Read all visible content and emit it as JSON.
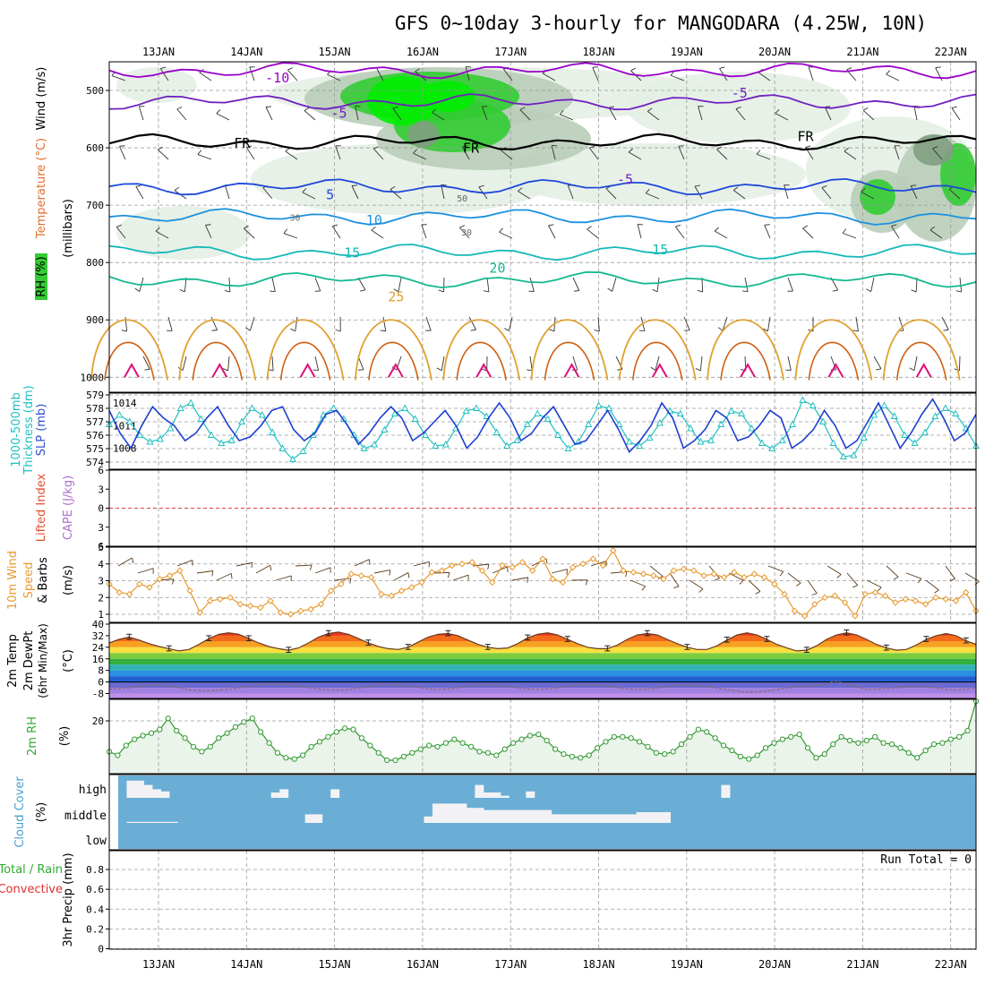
{
  "title": "GFS 0~10day 3-hourly for MANGODARA (4.25W, 10N)",
  "dates": [
    "13JAN",
    "14JAN",
    "15JAN",
    "16JAN",
    "17JAN",
    "18JAN",
    "19JAN",
    "20JAN",
    "21JAN",
    "22JAN"
  ],
  "colors": {
    "grid": "#9a9a9a",
    "rh_light": "#e4efe4",
    "rh_mid": "#b9cdb9",
    "rh_dark": "#7f9f7f",
    "rh_green": "#33cc33",
    "rh_bright": "#00ee00",
    "temp_m10": "#9900cc",
    "temp_m5": "#7020c0",
    "temp_fr": "#000000",
    "temp_5": "#1e48d8",
    "temp_10": "#1a90e0",
    "temp_15": "#16b8b8",
    "temp_20": "#14b890",
    "temp_25": "#e0a030",
    "temp_30": "#d06010",
    "temp_35": "#e0107a",
    "slp": "#1f3fd0",
    "thickness": "#20c0c0",
    "wind10m": "#e79a30",
    "barb": "#5a3a1a",
    "rh2m": "#339933",
    "rh2m_fill": "#eaf4ea",
    "cloud_bg": "#6aaed6",
    "cloud_fg": "#f2f2f5",
    "cape_zero": "#e04040"
  },
  "chart_data": [
    {
      "type": "heatmap",
      "panel": "upper-air",
      "ylabel": "(millibars)",
      "legend_labels": [
        "RH (%)",
        "Temperature (°C)",
        "Wind (m/s)"
      ],
      "y_ticks": [
        500,
        600,
        700,
        800,
        900,
        1000
      ],
      "ylim": [
        450,
        1005
      ],
      "contour_labels": [
        {
          "text": "-10",
          "day": 1.35,
          "p": 478
        },
        {
          "text": "-5",
          "day": 6.6,
          "p": 505
        },
        {
          "text": "-5",
          "day": 2.05,
          "p": 540
        },
        {
          "text": "FR",
          "day": 0.95,
          "p": 592
        },
        {
          "text": "FR",
          "day": 3.55,
          "p": 601
        },
        {
          "text": "FR",
          "day": 7.35,
          "p": 580
        },
        {
          "text": "5",
          "day": 1.95,
          "p": 682
        },
        {
          "text": "-5",
          "day": 5.3,
          "p": 655
        },
        {
          "text": "10",
          "day": 2.45,
          "p": 726
        },
        {
          "text": "15",
          "day": 2.2,
          "p": 783
        },
        {
          "text": "15",
          "day": 5.7,
          "p": 778
        },
        {
          "text": "20",
          "day": 3.85,
          "p": 810
        },
        {
          "text": "25",
          "day": 2.7,
          "p": 860
        },
        {
          "text": "30",
          "day": 1.55,
          "p": 719
        },
        {
          "text": "30",
          "day": 3.5,
          "p": 745
        },
        {
          "text": "50",
          "day": 3.45,
          "p": 686
        }
      ],
      "isotherms": [
        {
          "label": "-10",
          "p": 465
        },
        {
          "label": "-5",
          "p": 520
        },
        {
          "label": "FR",
          "p": 590
        },
        {
          "label": "5",
          "p": 668
        },
        {
          "label": "10",
          "p": 720
        },
        {
          "label": "15",
          "p": 782
        },
        {
          "label": "20",
          "p": 830
        }
      ]
    },
    {
      "type": "line",
      "panel": "slp-thickness",
      "legend_labels": [
        "1000-500mb",
        "Thickness (dm)",
        "SLP (mb)"
      ],
      "y_left_ticks": [
        574,
        575,
        576,
        577,
        578,
        579
      ],
      "y_right_ticks": [
        1008,
        1011,
        1014
      ],
      "series": [
        {
          "name": "SLP (mb)",
          "axis": "right",
          "ylim": [
            1005.5,
            1016
          ],
          "values": [
            1013,
            1010,
            1008,
            1011,
            1013.5,
            1012,
            1011,
            1009,
            1010,
            1012,
            1013.5,
            1011,
            1009,
            1009.5,
            1011,
            1013,
            1013.5,
            1010.5,
            1009,
            1010,
            1012.5,
            1013,
            1011,
            1008.5,
            1010,
            1012,
            1013.5,
            1012,
            1009,
            1010,
            1011.5,
            1013,
            1011,
            1008,
            1009.5,
            1012,
            1014,
            1012,
            1009,
            1010,
            1012,
            1013.5,
            1011,
            1008.5,
            1009,
            1011,
            1013,
            1010.5,
            1007.5,
            1009,
            1011,
            1014,
            1012,
            1008,
            1009,
            1010.5,
            1013,
            1012,
            1009,
            1009.5,
            1011,
            1013,
            1012,
            1008,
            1009,
            1010.5,
            1013,
            1011,
            1008,
            1009,
            1011.5,
            1014,
            1011,
            1008,
            1010,
            1012.5,
            1014.5,
            1012,
            1009,
            1010,
            1012.5
          ]
        },
        {
          "name": "Thickness (dm)",
          "axis": "left",
          "ylim": [
            573.5,
            579
          ],
          "values": [
            576.8,
            577.5,
            577,
            576,
            575.5,
            575.7,
            576.5,
            578,
            578.4,
            577.2,
            576,
            575.4,
            575.6,
            577,
            578,
            577.5,
            576.2,
            575,
            574.2,
            574.8,
            576,
            577.5,
            578,
            577.2,
            576,
            575,
            575.3,
            576.4,
            577.6,
            578,
            577.2,
            576,
            575.2,
            575.3,
            576.5,
            577.8,
            578,
            577.4,
            576.2,
            575.2,
            575.6,
            576.8,
            577.6,
            577.2,
            576,
            575,
            575.5,
            576.8,
            578.2,
            578,
            576.8,
            575.5,
            575.2,
            575.8,
            576.9,
            577.8,
            577.6,
            576.5,
            575.5,
            575.6,
            576.8,
            577.8,
            577.6,
            576.5,
            575.4,
            575,
            575.6,
            576.8,
            578.6,
            578.2,
            577,
            575.4,
            574.4,
            574.5,
            575.8,
            577.5,
            578.2,
            577.4,
            576,
            575.4,
            576.2,
            577.4,
            578,
            577.6,
            576.5,
            575.2
          ]
        }
      ]
    },
    {
      "type": "line",
      "panel": "cape-li",
      "legend_labels": [
        "Lifted Index",
        "CAPE (J/kg)"
      ],
      "y_ticks": [
        6,
        3,
        0,
        -3,
        -6
      ],
      "y_tick_labels": [
        "6",
        "3",
        "0",
        "3",
        "6"
      ],
      "zero_line": 0
    },
    {
      "type": "line",
      "panel": "wind10m",
      "legend_labels": [
        "10m Wind",
        "Speed",
        "& Barbs",
        "(m/s)"
      ],
      "y_ticks": [
        1,
        2,
        3,
        4,
        5
      ],
      "ylim": [
        0.7,
        5
      ],
      "series": [
        {
          "name": "Speed",
          "values": [
            2.8,
            2.3,
            2.2,
            2.8,
            2.6,
            3.1,
            3.3,
            3.6,
            2.4,
            1.1,
            1.8,
            1.9,
            2,
            1.6,
            1.5,
            1.4,
            1.8,
            1.1,
            1,
            1.2,
            1.3,
            1.6,
            2.4,
            2.8,
            3.4,
            3.3,
            3.2,
            2.2,
            2.1,
            2.4,
            2.6,
            2.9,
            3.5,
            3.6,
            3.9,
            4,
            4.1,
            3.6,
            2.9,
            3.9,
            3.8,
            4.1,
            3.6,
            4.3,
            3.1,
            2.9,
            3.8,
            4,
            4.3,
            3.9,
            4.8,
            3.6,
            3.5,
            3.4,
            3.3,
            3.1,
            3.6,
            3.7,
            3.6,
            3.3,
            3.4,
            3.2,
            3.5,
            3.2,
            3.4,
            3.2,
            2.8,
            2.2,
            1.2,
            0.9,
            1.6,
            2,
            2.1,
            1.7,
            0.9,
            2.2,
            2.3,
            2.1,
            1.7,
            1.9,
            1.8,
            1.6,
            2,
            1.9,
            1.8,
            2.3,
            1.2
          ]
        }
      ]
    },
    {
      "type": "area",
      "panel": "temp-dewpt",
      "legend_labels": [
        "2m Temp",
        "2m DewPt",
        "(6hr Min/Max)",
        "(°C)"
      ],
      "y_ticks": [
        40,
        32,
        24,
        16,
        8,
        0,
        -8
      ],
      "ylim": [
        -12,
        40
      ],
      "series": [
        {
          "name": "2m Temp",
          "values": [
            27,
            29.5,
            31,
            29,
            26.5,
            24.5,
            23,
            21.5,
            22.5,
            26,
            30,
            33,
            34,
            33,
            30,
            27,
            24.5,
            23,
            22,
            23.5,
            27,
            31,
            33.5,
            34.5,
            33,
            30,
            27,
            24.5,
            23,
            22.5,
            24,
            27.5,
            31,
            33,
            33.5,
            32,
            29,
            26,
            24,
            23,
            23.5,
            26.5,
            30.5,
            33,
            34,
            32.5,
            29.5,
            26.5,
            24,
            23,
            23,
            25.5,
            29.5,
            32.5,
            33.5,
            32.5,
            29.5,
            26.5,
            24,
            22.5,
            22.5,
            25,
            29,
            32.5,
            34,
            32.5,
            29.5,
            26,
            23.5,
            21.5,
            22,
            25,
            29.5,
            32.5,
            34,
            32.5,
            29.5,
            26,
            23.5,
            22,
            22.5,
            25.5,
            29.5,
            32,
            33.5,
            32,
            28.5,
            26
          ]
        },
        {
          "name": "2m DewPt",
          "values": [
            -5,
            -4.5,
            -4,
            -3,
            -2.5,
            -2,
            -3,
            -4,
            -5.5,
            -6,
            -6,
            -5.5,
            -5,
            -4,
            -3,
            -2,
            -1.5,
            -1.5,
            -2,
            -3,
            -4,
            -5,
            -5.5,
            -5.5,
            -5,
            -4,
            -3,
            -2,
            -2,
            -2.5,
            -3,
            -4,
            -5,
            -5,
            -4.5,
            -3.5,
            -2.5,
            -2,
            -2,
            -2.5,
            -3.5,
            -4.5,
            -5,
            -5,
            -4.5,
            -3.5,
            -2.5,
            -2,
            -2,
            -2.5,
            -3.5,
            -4.5,
            -5,
            -5,
            -4.5,
            -3.5,
            -2.5,
            -2,
            -2.5,
            -3,
            -4,
            -5,
            -6,
            -7,
            -7,
            -6.5,
            -5.5,
            -4.5,
            -3.5,
            -3,
            -2.5,
            -1.5,
            0.5,
            -1,
            -3,
            -5,
            -5,
            -4.5,
            -4,
            -3.5,
            -3,
            -3.5,
            -4,
            -5,
            -5.5,
            -5,
            -4
          ]
        }
      ]
    },
    {
      "type": "line",
      "panel": "rh2m",
      "legend_labels": [
        "2m RH",
        "(%)"
      ],
      "y_ticks": [
        20
      ],
      "ylim": [
        0,
        31
      ],
      "series": [
        {
          "name": "2m RH",
          "values": [
            7.5,
            6,
            10,
            12.5,
            14,
            15,
            16.5,
            21,
            16,
            13,
            9.5,
            7.5,
            9.5,
            13,
            15,
            17.5,
            19.5,
            21,
            15.5,
            11,
            7,
            5,
            4.5,
            6,
            9.5,
            11.5,
            13.5,
            15.5,
            17,
            16.5,
            13,
            10,
            7,
            4,
            4,
            5.5,
            7,
            8.5,
            10,
            9.5,
            11,
            12.5,
            11,
            9.5,
            7.5,
            7,
            6,
            8.5,
            11,
            12.5,
            14,
            14.5,
            12,
            8.5,
            6.5,
            5.5,
            5,
            6,
            9,
            11.5,
            13.5,
            13.5,
            13,
            11.5,
            9.5,
            7,
            6.5,
            7.5,
            10.5,
            13.5,
            16.5,
            15.5,
            13,
            10,
            8,
            5.5,
            4.5,
            6,
            9,
            11,
            12.5,
            13.5,
            14.5,
            9,
            5,
            6.5,
            10.5,
            13.5,
            12,
            11,
            12,
            13.5,
            11,
            10.5,
            9,
            7,
            5,
            8,
            10.5,
            11,
            12.5,
            13.5,
            16,
            28
          ]
        }
      ]
    },
    {
      "type": "bar",
      "panel": "cloud",
      "legend_labels": [
        "Cloud Cover",
        "(%)"
      ],
      "level_labels": [
        "high",
        "middle",
        "low"
      ],
      "series": [
        {
          "name": "high",
          "values": [
            0,
            80,
            80,
            60,
            40,
            30,
            0,
            0,
            0,
            0,
            0,
            0,
            0,
            0,
            0,
            0,
            0,
            0,
            25,
            40,
            0,
            0,
            0,
            0,
            0,
            40,
            0,
            0,
            0,
            0,
            0,
            0,
            0,
            0,
            0,
            0,
            0,
            0,
            0,
            0,
            0,
            0,
            60,
            25,
            25,
            10,
            0,
            0,
            30,
            0,
            0,
            0,
            0,
            0,
            0,
            0,
            0,
            0,
            0,
            0,
            0,
            0,
            0,
            0,
            0,
            0,
            0,
            0,
            0,
            0,
            0,
            60,
            0,
            0,
            0,
            0,
            0,
            0,
            0,
            0,
            0,
            0,
            0,
            0,
            0,
            0,
            0,
            0,
            0,
            0,
            0,
            0,
            0,
            0,
            0,
            0,
            0,
            0,
            0,
            0,
            0
          ]
        },
        {
          "name": "middle",
          "values": [
            0,
            5,
            5,
            5,
            5,
            5,
            5,
            0,
            0,
            0,
            0,
            0,
            0,
            0,
            0,
            0,
            0,
            0,
            0,
            0,
            0,
            0,
            40,
            40,
            0,
            0,
            0,
            0,
            0,
            0,
            0,
            0,
            0,
            0,
            0,
            0,
            30,
            90,
            90,
            90,
            90,
            70,
            70,
            60,
            60,
            60,
            60,
            60,
            60,
            60,
            60,
            40,
            40,
            40,
            40,
            40,
            40,
            40,
            40,
            40,
            40,
            50,
            50,
            50,
            50,
            0,
            0,
            0,
            0,
            0,
            0,
            0,
            0,
            0,
            0,
            0,
            0,
            0,
            0,
            0,
            0,
            0,
            0,
            0,
            0,
            0,
            0,
            0,
            0,
            0,
            0,
            0,
            0,
            0,
            0,
            0,
            0,
            0,
            0,
            0
          ]
        }
      ]
    },
    {
      "type": "bar",
      "panel": "precip",
      "legend_labels": [
        "3hr Precip (mm)",
        "Total / Rain",
        "Convective"
      ],
      "y_ticks": [
        0,
        0.2,
        0.4,
        0.6,
        0.8
      ],
      "ylim": [
        0,
        1
      ],
      "run_total_label": "Run Total = 0",
      "values": []
    }
  ]
}
